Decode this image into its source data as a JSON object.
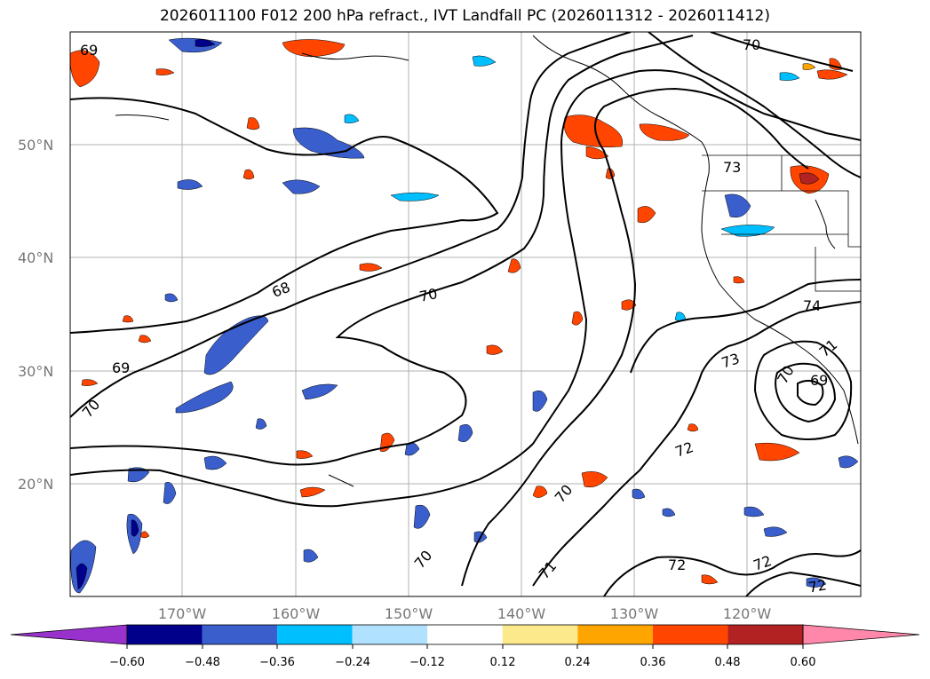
{
  "title": "2026011100 F012 200 hPa refract., IVT Landfall PC (2026011312 - 2026011412)",
  "lat_labels": [
    "50°N",
    "40°N",
    "30°N",
    "20°N"
  ],
  "lon_labels": [
    "170°W",
    "160°W",
    "150°W",
    "140°W",
    "130°W",
    "120°W"
  ],
  "contour_labels": [
    "69",
    "68",
    "70",
    "70",
    "73",
    "73",
    "74",
    "71",
    "70",
    "69",
    "72",
    "72",
    "72",
    "72",
    "70",
    "71",
    "70",
    "69",
    "70"
  ],
  "colorbar": {
    "ticks": [
      "−0.60",
      "−0.48",
      "−0.36",
      "−0.24",
      "−0.12",
      "0.12",
      "0.24",
      "0.36",
      "0.48",
      "0.60"
    ],
    "colors": [
      "#9932cc",
      "#00008b",
      "#3a5fcd",
      "#00bfff",
      "#b0e2ff",
      "#ffffff",
      "#fce98b",
      "#ffa500",
      "#ff4500",
      "#b22222",
      "#ff88aa"
    ]
  }
}
